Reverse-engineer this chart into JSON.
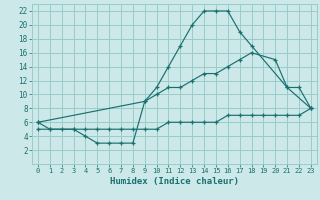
{
  "xlabel": "Humidex (Indice chaleur)",
  "xlim": [
    -0.5,
    23.5
  ],
  "ylim": [
    0,
    23
  ],
  "xticks": [
    0,
    1,
    2,
    3,
    4,
    5,
    6,
    7,
    8,
    9,
    10,
    11,
    12,
    13,
    14,
    15,
    16,
    17,
    18,
    19,
    20,
    21,
    22,
    23
  ],
  "yticks": [
    2,
    4,
    6,
    8,
    10,
    12,
    14,
    16,
    18,
    20,
    22
  ],
  "bg_color": "#cce8e8",
  "grid_color": "#99cccc",
  "line_color": "#1a7070",
  "line1_x": [
    0,
    1,
    3,
    4,
    5,
    6,
    7,
    8,
    9,
    10,
    11,
    12,
    13,
    14,
    15,
    16,
    17,
    18,
    21,
    22,
    23
  ],
  "line1_y": [
    6,
    5,
    5,
    4,
    3,
    3,
    3,
    3,
    9,
    11,
    14,
    17,
    20,
    22,
    22,
    22,
    19,
    17,
    11,
    11,
    8
  ],
  "line2_x": [
    0,
    9,
    10,
    11,
    12,
    13,
    14,
    15,
    16,
    17,
    18,
    20,
    21,
    23
  ],
  "line2_y": [
    6,
    9,
    10,
    11,
    11,
    12,
    13,
    13,
    14,
    15,
    16,
    15,
    11,
    8
  ],
  "line3_x": [
    0,
    1,
    2,
    3,
    4,
    5,
    6,
    7,
    8,
    9,
    10,
    11,
    12,
    13,
    14,
    15,
    16,
    17,
    18,
    19,
    20,
    21,
    22,
    23
  ],
  "line3_y": [
    5,
    5,
    5,
    5,
    5,
    5,
    5,
    5,
    5,
    5,
    5,
    6,
    6,
    6,
    6,
    6,
    7,
    7,
    7,
    7,
    7,
    7,
    7,
    8
  ]
}
